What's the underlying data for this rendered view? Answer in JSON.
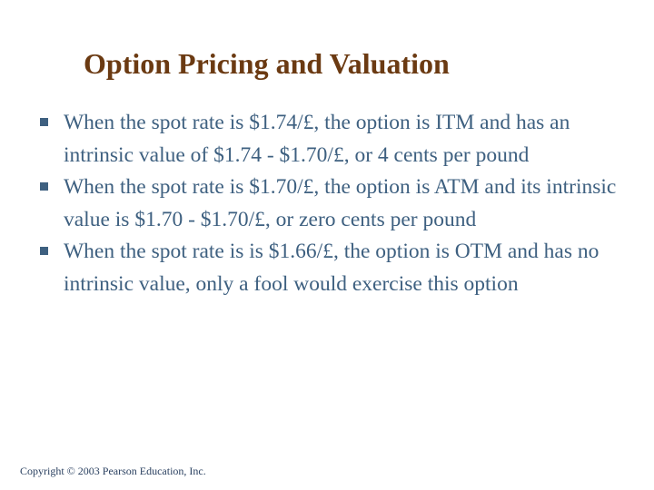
{
  "slide": {
    "title": "Option Pricing and Valuation",
    "bullets": [
      {
        "text": "When the spot rate is $1.74/£, the option is ITM and has an intrinsic value of $1.74 - $1.70/£, or 4 cents per pound"
      },
      {
        "text": "When the spot rate is $1.70/£, the option is ATM and its intrinsic value is $1.70 - $1.70/£, or zero cents per pound"
      },
      {
        "text": "When the spot rate is is $1.66/£, the option is OTM and has no intrinsic value, only a fool would exercise this option"
      }
    ],
    "footer": "Copyright © 2003 Pearson Education, Inc.",
    "colors": {
      "title": "#6B3A12",
      "body": "#3E6080"
    }
  }
}
